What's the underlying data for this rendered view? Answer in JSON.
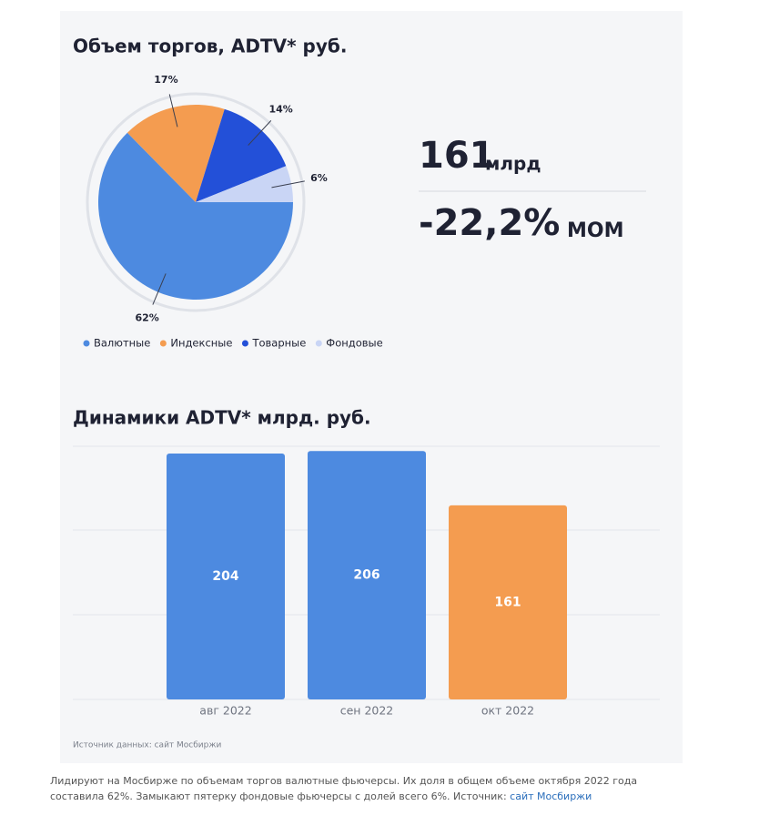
{
  "chart_data": [
    {
      "type": "pie",
      "title": "Объем торгов, ADTV* руб.",
      "categories": [
        "Валютные",
        "Индексные",
        "Товарные",
        "Фондовые"
      ],
      "values": [
        62,
        17,
        14,
        6
      ],
      "value_labels": [
        "62%",
        "17%",
        "14%",
        "6%"
      ],
      "colors": [
        "#4d8ae0",
        "#f49c50",
        "#2350d8",
        "#c9d5f5"
      ]
    },
    {
      "type": "bar",
      "title": "Динамики ADTV* млрд. руб.",
      "categories": [
        "авг 2022",
        "сен 2022",
        "окт 2022"
      ],
      "values": [
        204,
        206,
        161
      ],
      "colors": [
        "#4d8ae0",
        "#4d8ae0",
        "#f49c50"
      ],
      "ylim": [
        0,
        210
      ]
    }
  ],
  "stats": {
    "value": "161",
    "unit": "млрд",
    "change": "-22,2%",
    "change_unit": "MOM"
  },
  "source": "Источник данных: сайт Мосбиржи",
  "caption": {
    "line1": "Лидируют на Мосбирже по объемам торгов валютные фьючерсы. Их доля в общем объеме октября 2022 года",
    "line2": "составила 62%. Замыкают пятерку фондовые фьючерсы с долей всего 6%. Источник: ",
    "link": "сайт Мосбиржи"
  }
}
